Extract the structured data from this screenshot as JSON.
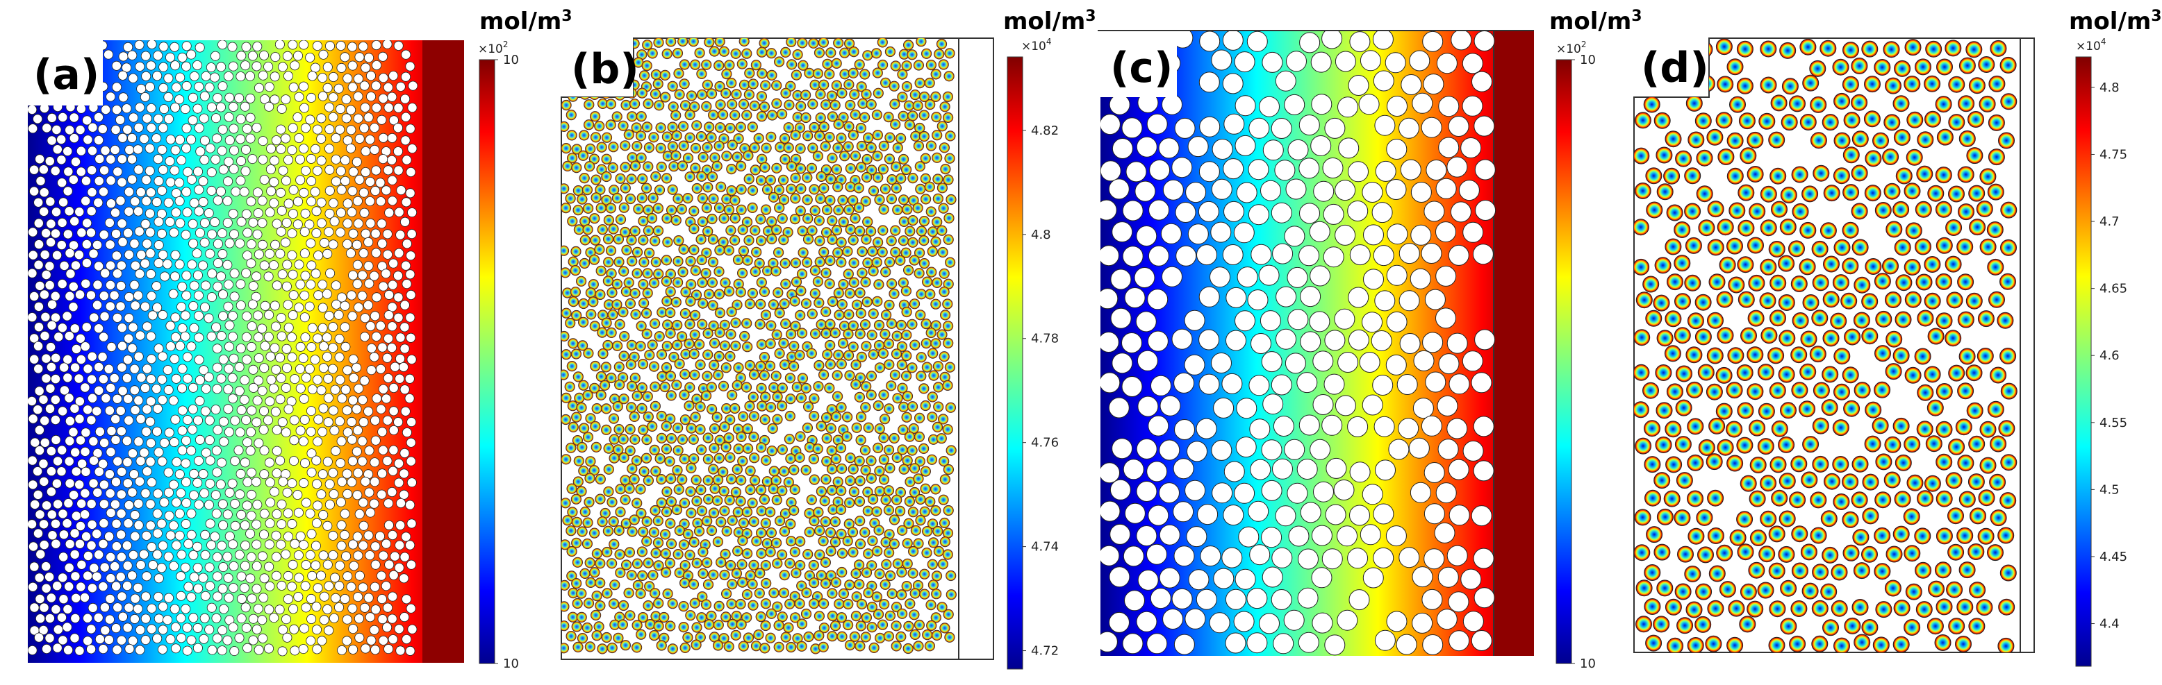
{
  "figure": {
    "panels": [
      {
        "id": "a",
        "label": "(a)",
        "field": "concentration in pore space, increasing left to right",
        "colorbar": {
          "unit": "mol/m",
          "unit_sup": "3",
          "multiplier_base": "×10",
          "multiplier_exp": "2",
          "ticks": [
            {
              "text": "10",
              "pos": 0
            },
            {
              "text": "10",
              "pos": 1
            }
          ]
        }
      },
      {
        "id": "b",
        "label": "(b)",
        "field": "concentration inside particles",
        "colorbar": {
          "unit": "mol/m",
          "unit_sup": "3",
          "multiplier_base": "×10",
          "multiplier_exp": "4",
          "ticks": [
            {
              "text": "4.72",
              "pos": 0.03
            },
            {
              "text": "4.74",
              "pos": 0.2
            },
            {
              "text": "4.76",
              "pos": 0.37
            },
            {
              "text": "4.78",
              "pos": 0.54
            },
            {
              "text": "4.8",
              "pos": 0.71
            },
            {
              "text": "4.82",
              "pos": 0.88
            }
          ]
        }
      },
      {
        "id": "c",
        "label": "(c)",
        "field": "concentration in pore space, increasing left to right",
        "colorbar": {
          "unit": "mol/m",
          "unit_sup": "3",
          "multiplier_base": "×10",
          "multiplier_exp": "2",
          "ticks": [
            {
              "text": "10",
              "pos": 0
            },
            {
              "text": "10",
              "pos": 1
            }
          ]
        }
      },
      {
        "id": "d",
        "label": "(d)",
        "field": "concentration inside particles",
        "colorbar": {
          "unit": "mol/m",
          "unit_sup": "3",
          "multiplier_base": "×10",
          "multiplier_exp": "4",
          "ticks": [
            {
              "text": "4.4",
              "pos": 0.07
            },
            {
              "text": "4.45",
              "pos": 0.18
            },
            {
              "text": "4.5",
              "pos": 0.29
            },
            {
              "text": "4.55",
              "pos": 0.4
            },
            {
              "text": "4.6",
              "pos": 0.51
            },
            {
              "text": "4.65",
              "pos": 0.62
            },
            {
              "text": "4.7",
              "pos": 0.73
            },
            {
              "text": "4.75",
              "pos": 0.84
            },
            {
              "text": "4.8",
              "pos": 0.95
            }
          ]
        }
      }
    ],
    "colormap": "jet"
  }
}
